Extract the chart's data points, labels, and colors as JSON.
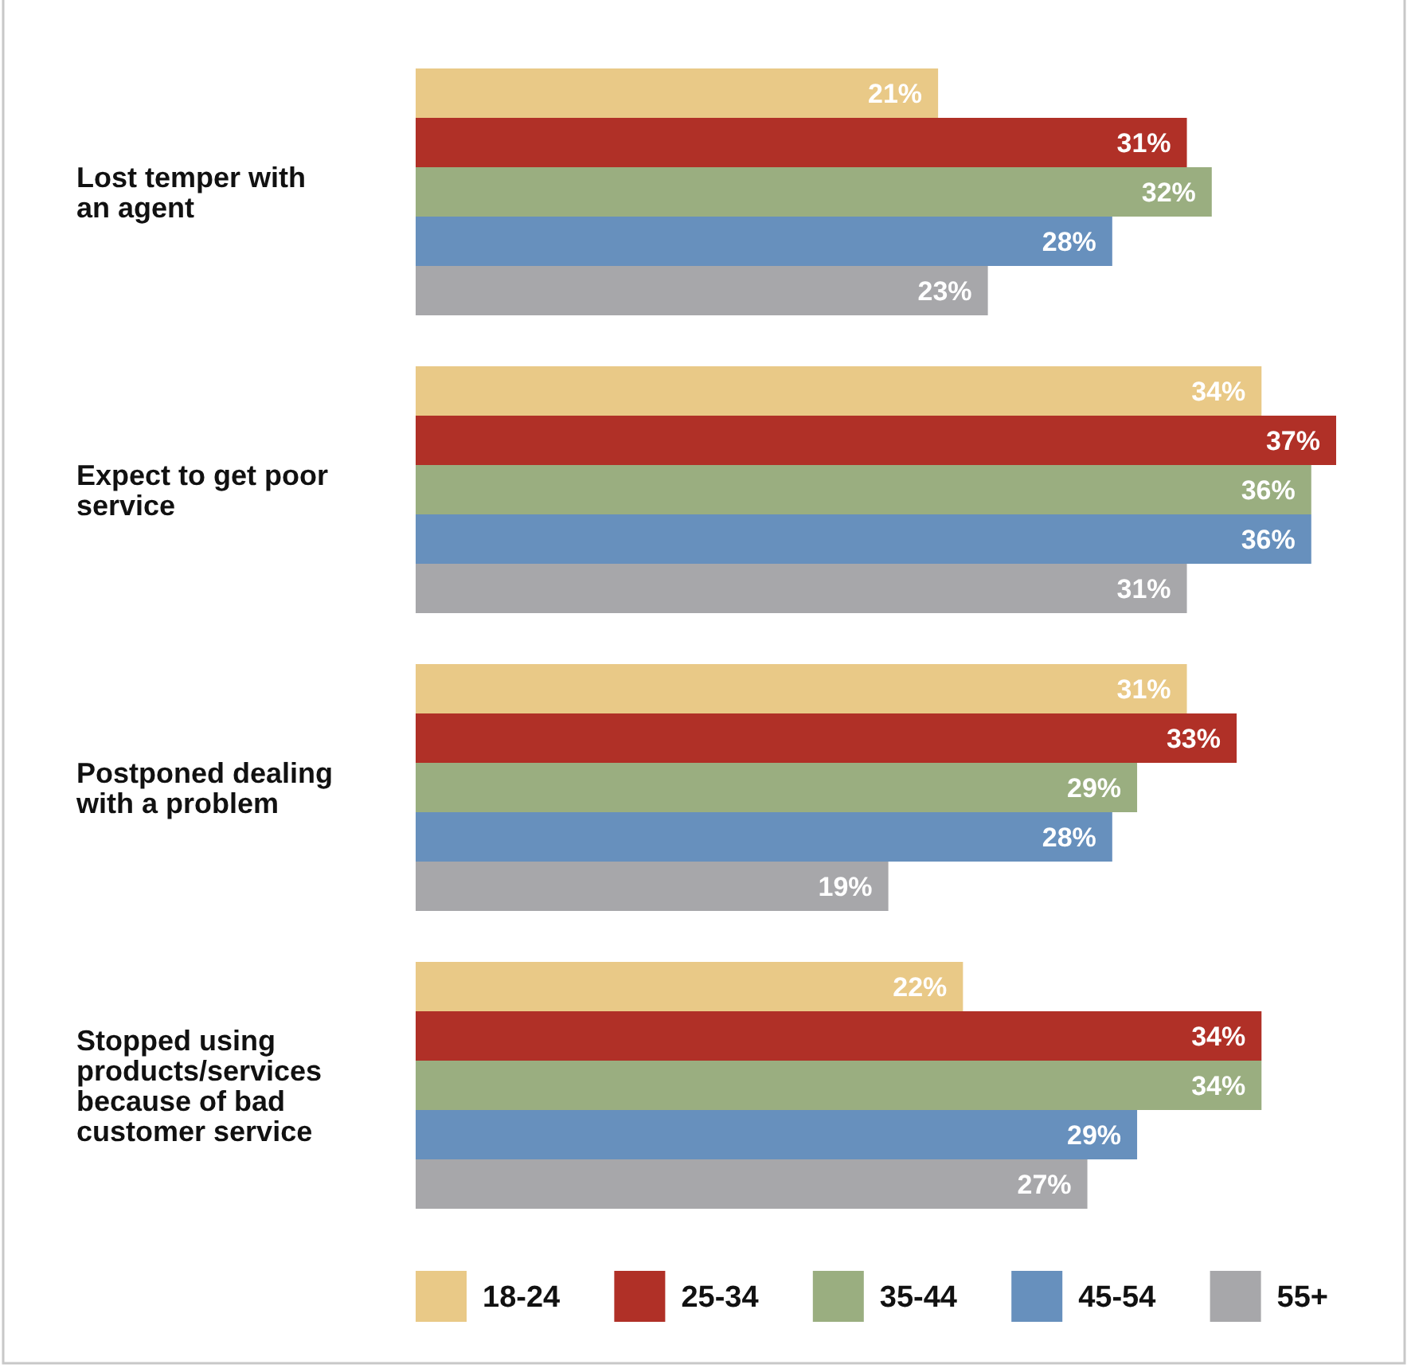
{
  "chart_data": {
    "type": "bar",
    "orientation": "horizontal",
    "legend": "bottom",
    "categories": [
      "Lost temper with an agent",
      "Expect to get poor service",
      "Postponed dealing with a problem",
      "Stopped using products/services because of bad customer service"
    ],
    "series": [
      {
        "name": "18-24",
        "color": "#e9c987",
        "values": [
          21,
          34,
          31,
          22
        ],
        "value_labels": [
          "21%",
          "34%",
          "31%",
          "22%"
        ]
      },
      {
        "name": "25-34",
        "color": "#b03027",
        "values": [
          31,
          37,
          33,
          34
        ],
        "value_labels": [
          "31%",
          "37%",
          "33%",
          "34%"
        ]
      },
      {
        "name": "35-44",
        "color": "#9aae80",
        "values": [
          32,
          36,
          29,
          34
        ],
        "value_labels": [
          "32%",
          "36%",
          "29%",
          "34%"
        ]
      },
      {
        "name": "45-54",
        "color": "#6790bd",
        "values": [
          28,
          36,
          28,
          29
        ],
        "value_labels": [
          "28%",
          "36%",
          "28%",
          "29%"
        ]
      },
      {
        "name": "55+",
        "color": "#a7a7aa",
        "values": [
          23,
          31,
          19,
          27
        ],
        "value_labels": [
          "23%",
          "31%",
          "19%",
          "27%"
        ]
      }
    ]
  }
}
